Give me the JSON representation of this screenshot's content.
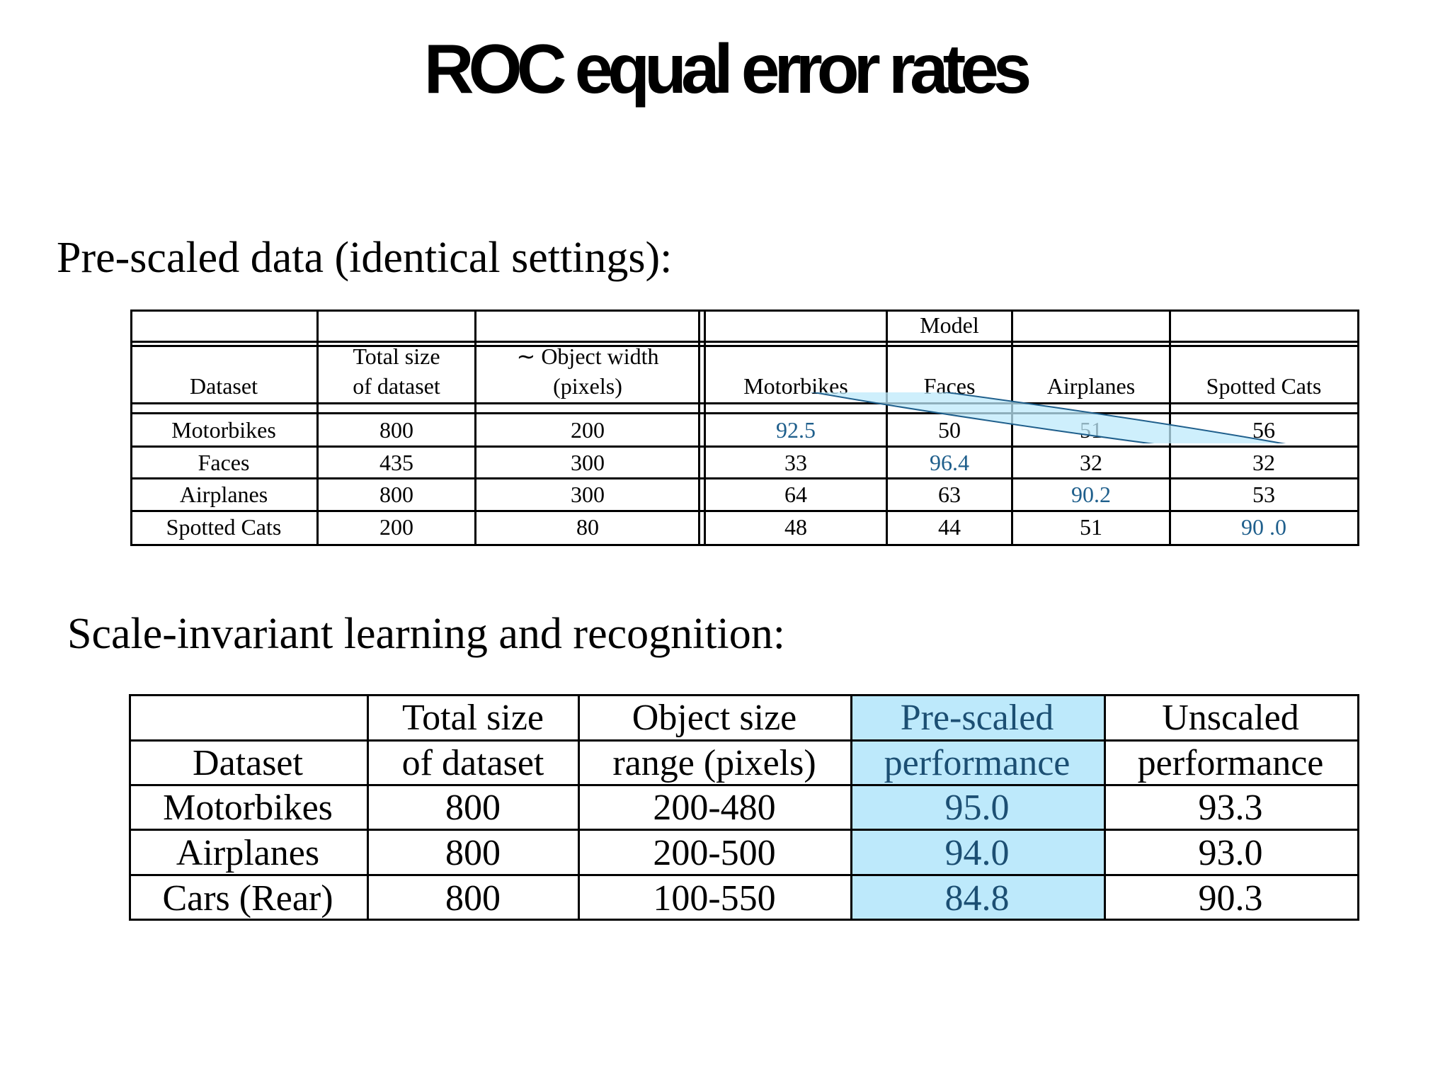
{
  "title": "ROC equal error rates",
  "section1_heading": "Pre-scaled data (identical settings):",
  "section2_heading": "Scale-invariant learning and recognition:",
  "table1": {
    "group_header": "Model",
    "headers": {
      "dataset": "Dataset",
      "size_line1": "Total size",
      "size_line2": "of dataset",
      "width_line1": "∼ Object width",
      "width_line2": "(pixels)",
      "motorbikes": "Motorbikes",
      "faces": "Faces",
      "airplanes": "Airplanes",
      "cats": "Spotted Cats"
    },
    "rows": [
      {
        "dataset": "Motorbikes",
        "size": "800",
        "width": "200",
        "motorbikes": "92.5",
        "faces": "50",
        "airplanes": "51",
        "cats": "56"
      },
      {
        "dataset": "Faces",
        "size": "435",
        "width": "300",
        "motorbikes": "33",
        "faces": "96.4",
        "airplanes": "32",
        "cats": "32"
      },
      {
        "dataset": "Airplanes",
        "size": "800",
        "width": "300",
        "motorbikes": "64",
        "faces": "63",
        "airplanes": "90.2",
        "cats": "53"
      },
      {
        "dataset": "Spotted Cats",
        "size": "200",
        "width": "80",
        "motorbikes": "48",
        "faces": "44",
        "airplanes": "51",
        "cats": "90 .0"
      }
    ],
    "highlight_color": "#bde9fb",
    "highlight_outline": "#1f5f8c"
  },
  "table2": {
    "headers": {
      "dataset": "Dataset",
      "size_line1": "Total size",
      "size_line2": "of dataset",
      "range_line1": "Object size",
      "range_line2": "range (pixels)",
      "pre_line1": "Pre-scaled",
      "pre_line2": "performance",
      "un_line1": "Unscaled",
      "un_line2": "performance"
    },
    "rows": [
      {
        "dataset": "Motorbikes",
        "size": "800",
        "range": "200-480",
        "pre": "95.0",
        "un": "93.3"
      },
      {
        "dataset": "Airplanes",
        "size": "800",
        "range": "200-500",
        "pre": "94.0",
        "un": "93.0"
      },
      {
        "dataset": "Cars (Rear)",
        "size": "800",
        "range": "100-550",
        "pre": "84.8",
        "un": "90.3"
      }
    ],
    "highlight_color": "#bde9fb"
  }
}
